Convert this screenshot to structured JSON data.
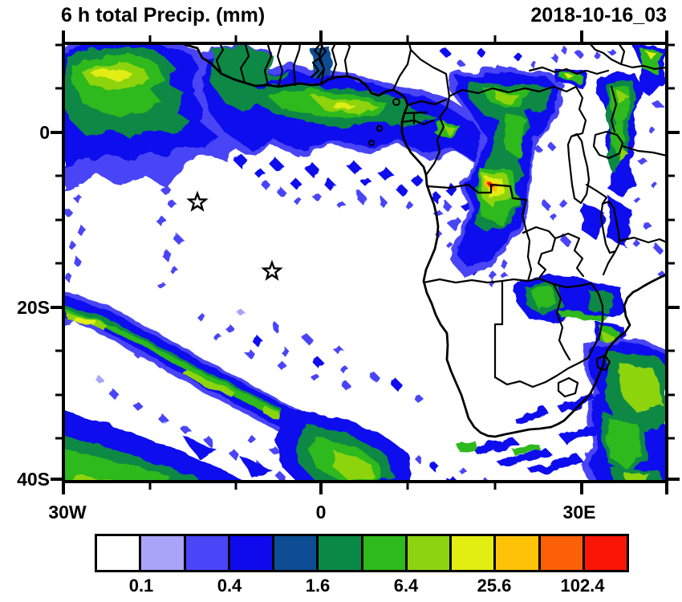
{
  "header": {
    "title": "6 h total Precip. (mm)",
    "date_label": "2018-10-16_03"
  },
  "map": {
    "y_axis_ticks": [
      "0",
      "20S",
      "40S"
    ],
    "x_axis_ticks": [
      "30W",
      "0",
      "30E"
    ],
    "region": "Africa and surrounding oceans",
    "star_markers": [
      {
        "approx_lon": "14W",
        "approx_lat": "8S"
      },
      {
        "approx_lon": "6W",
        "approx_lat": "16S"
      }
    ]
  },
  "colorbar": {
    "labels": [
      "0.1",
      "0.4",
      "1.6",
      "6.4",
      "25.6",
      "102.4"
    ],
    "colors": [
      "#ffffff",
      "#a9a4f8",
      "#4a45f6",
      "#0f0aee",
      "#0d4d94",
      "#0a8845",
      "#2eb91c",
      "#8dd410",
      "#e2ed12",
      "#fec306",
      "#fb6007",
      "#f91606"
    ]
  },
  "chart_data": {
    "type": "heatmap",
    "title": "6 h total Precip. (mm)",
    "time": "2018-10-16_03",
    "units": "mm",
    "scale_boundary_labels": [
      0.1,
      0.4,
      1.6,
      6.4,
      25.6,
      102.4
    ],
    "lat_axis": {
      "labeled_ticks": [
        "0",
        "20S",
        "40S"
      ],
      "minor_interval_deg": 5
    },
    "lon_axis": {
      "labeled_ticks": [
        "30W",
        "0",
        "30E"
      ],
      "minor_interval_deg": 10
    },
    "legend_position": "bottom",
    "notable_features": [
      "Convective cluster with yellow core in NW corner (eastern tropical Atlantic)",
      "Rain band along Gulf of Guinea coast with yellow-green core",
      "Intense Congo-basin cell with small orange-red core (> 25.6 mm)",
      "Showers along East African rift and Lake region",
      "Long SW-NE frontal rain band over the South Atlantic",
      "Large rain system in SE corner over SW Indian Ocean",
      "Two star markers over the tropical South Atlantic"
    ]
  }
}
